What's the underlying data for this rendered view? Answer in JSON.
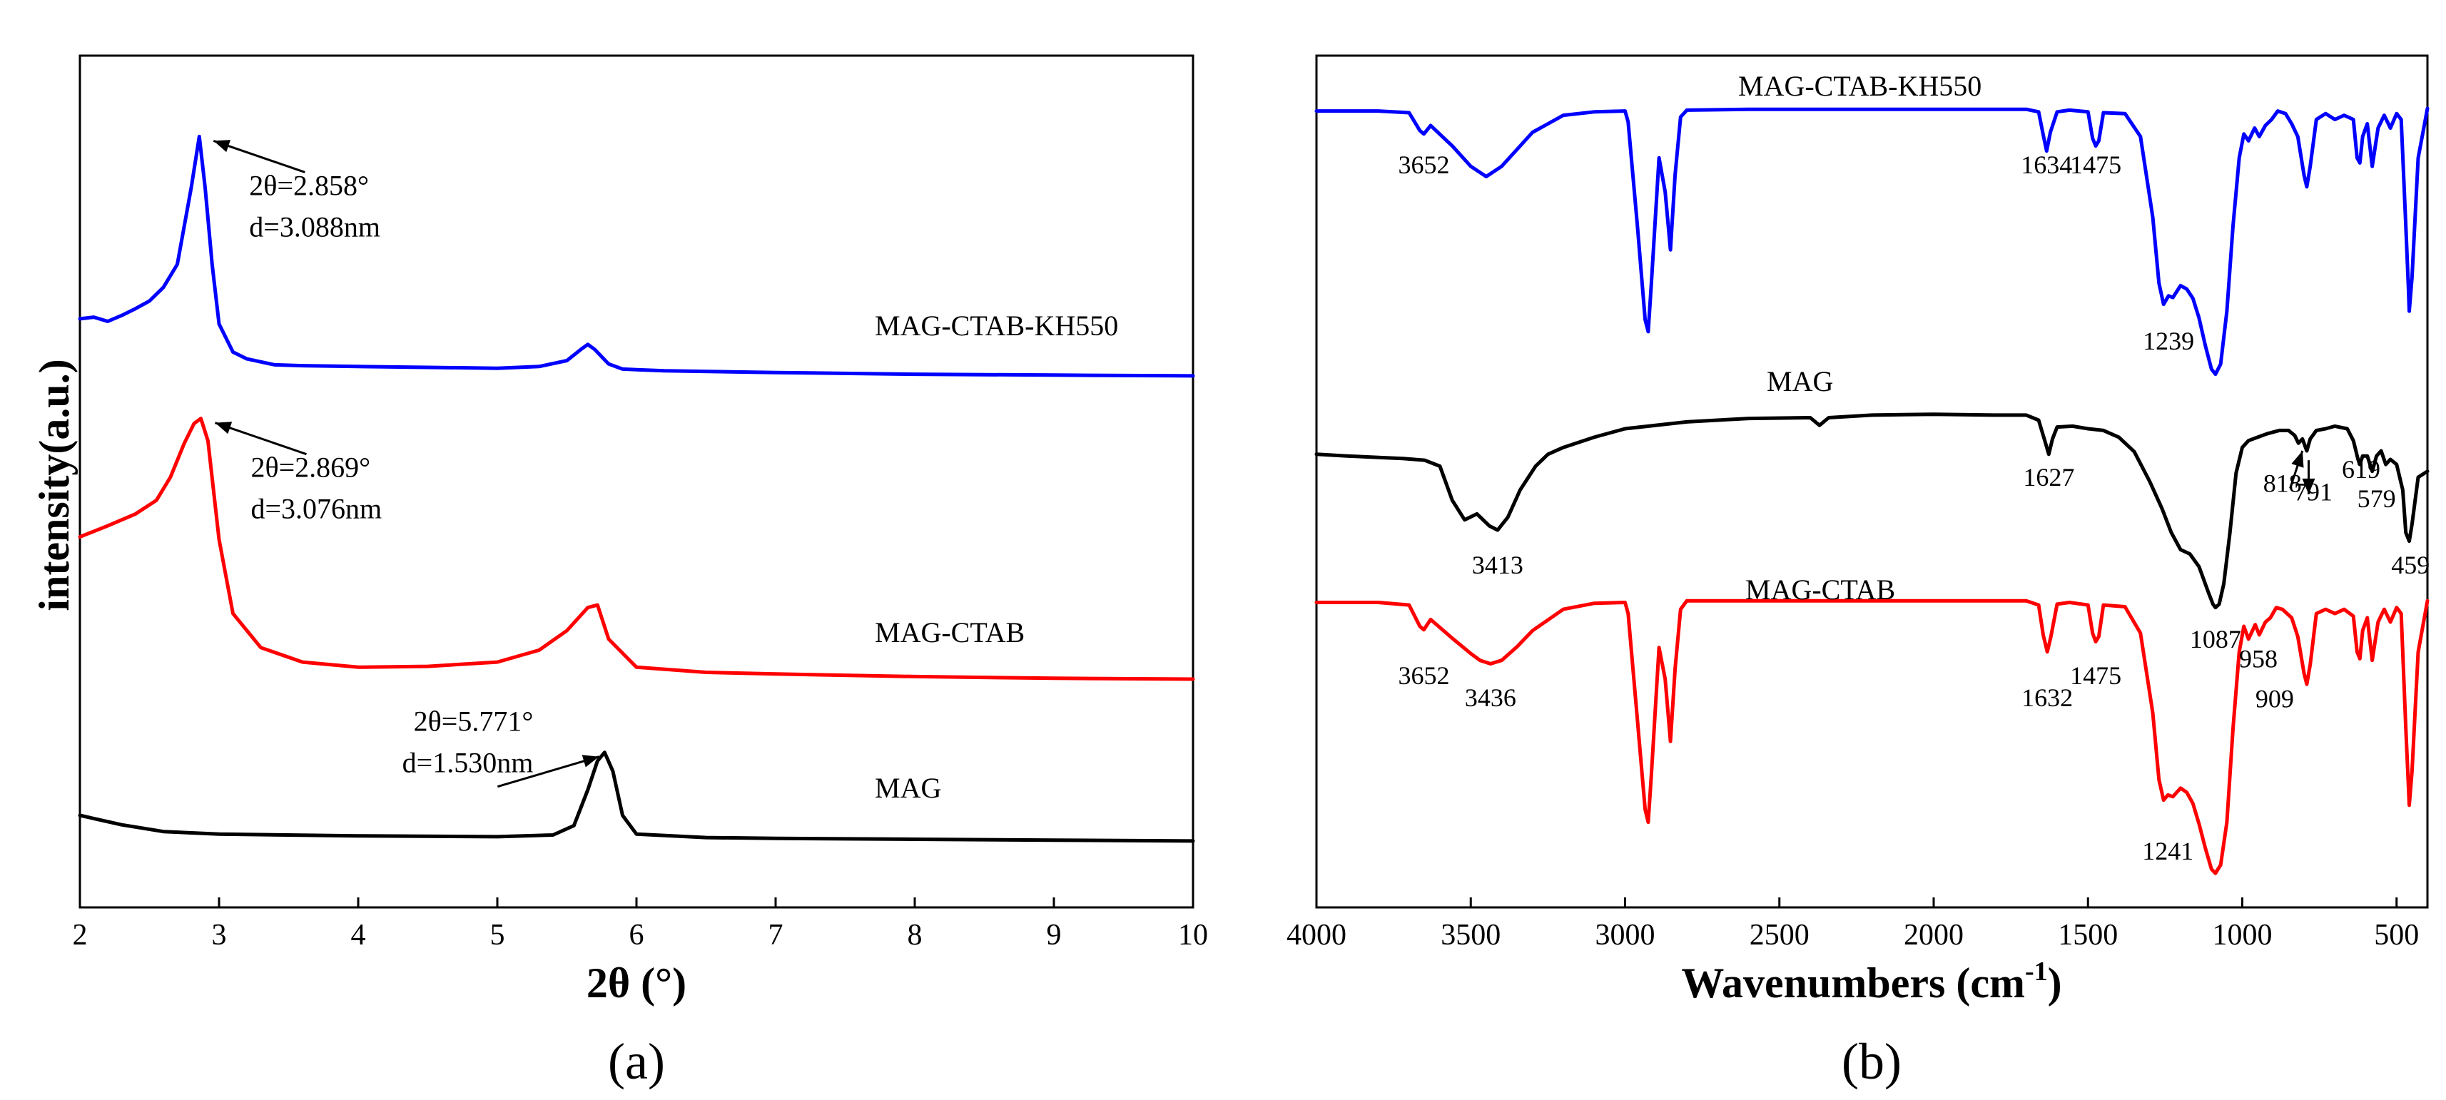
{
  "chart_data": [
    {
      "type": "line",
      "panel_label": "(a)",
      "xlabel": "2θ (°)",
      "ylabel": "intensity(a.u.)",
      "xlim": [
        2,
        10
      ],
      "ylim": [
        0,
        1
      ],
      "xticks": [
        2,
        3,
        4,
        5,
        6,
        7,
        8,
        9,
        10
      ],
      "yticks": false,
      "series": [
        {
          "name": "MAG-CTAB-KH550",
          "color": "#0000ff",
          "x": [
            2.0,
            2.1,
            2.2,
            2.3,
            2.4,
            2.5,
            2.6,
            2.7,
            2.8,
            2.858,
            2.9,
            2.95,
            3.0,
            3.1,
            3.2,
            3.4,
            3.6,
            4.0,
            4.5,
            5.0,
            5.3,
            5.5,
            5.6,
            5.65,
            5.7,
            5.8,
            5.9,
            6.2,
            7.0,
            8.0,
            9.0,
            10.0
          ],
          "y": [
            0.691,
            0.693,
            0.688,
            0.695,
            0.703,
            0.712,
            0.728,
            0.755,
            0.845,
            0.905,
            0.845,
            0.755,
            0.685,
            0.652,
            0.644,
            0.637,
            0.636,
            0.635,
            0.634,
            0.633,
            0.635,
            0.642,
            0.655,
            0.661,
            0.655,
            0.638,
            0.632,
            0.63,
            0.628,
            0.626,
            0.625,
            0.624
          ]
        },
        {
          "name": "MAG-CTAB",
          "color": "#ff0000",
          "x": [
            2.0,
            2.2,
            2.4,
            2.55,
            2.65,
            2.75,
            2.82,
            2.869,
            2.92,
            3.0,
            3.1,
            3.3,
            3.6,
            4.0,
            4.5,
            5.0,
            5.3,
            5.5,
            5.65,
            5.72,
            5.8,
            6.0,
            6.5,
            7.0,
            8.0,
            9.0,
            10.0
          ],
          "y": [
            0.435,
            0.448,
            0.462,
            0.478,
            0.505,
            0.545,
            0.568,
            0.574,
            0.548,
            0.432,
            0.345,
            0.305,
            0.288,
            0.282,
            0.283,
            0.288,
            0.302,
            0.325,
            0.352,
            0.355,
            0.315,
            0.282,
            0.276,
            0.274,
            0.271,
            0.269,
            0.268
          ]
        },
        {
          "name": "MAG",
          "color": "#000000",
          "x": [
            2.0,
            2.3,
            2.6,
            3.0,
            4.0,
            5.0,
            5.4,
            5.55,
            5.65,
            5.72,
            5.771,
            5.83,
            5.9,
            6.0,
            6.5,
            7.0,
            8.0,
            9.0,
            10.0
          ],
          "y": [
            0.108,
            0.097,
            0.089,
            0.086,
            0.084,
            0.083,
            0.085,
            0.096,
            0.138,
            0.172,
            0.182,
            0.16,
            0.108,
            0.086,
            0.082,
            0.081,
            0.08,
            0.079,
            0.078
          ]
        }
      ],
      "labels": [
        "MAG-CTAB-KH550",
        "MAG-CTAB",
        "MAG"
      ],
      "annotations": [
        {
          "line1": "2θ=2.858°",
          "line2": "d=3.088nm",
          "peak_x": 2.858,
          "series": "MAG-CTAB-KH550"
        },
        {
          "line1": "2θ=2.869°",
          "line2": "d=3.076nm",
          "peak_x": 2.869,
          "series": "MAG-CTAB"
        },
        {
          "line1": "2θ=5.771°",
          "line2": "d=1.530nm",
          "peak_x": 5.771,
          "series": "MAG"
        }
      ]
    },
    {
      "type": "line",
      "panel_label": "(b)",
      "xlabel_main": "Wavenumbers (cm",
      "xlabel_sup": "-1",
      "xlabel_end": ")",
      "xlim": [
        4000,
        400
      ],
      "ylim": [
        0,
        1
      ],
      "xticks": [
        4000,
        3500,
        3000,
        2500,
        2000,
        1500,
        1000,
        500
      ],
      "yticks": false,
      "series": [
        {
          "name": "MAG-CTAB-KH550",
          "color": "#0000ff",
          "x": [
            4000,
            3800,
            3700,
            3665,
            3652,
            3630,
            3560,
            3500,
            3450,
            3400,
            3300,
            3200,
            3100,
            3000,
            2990,
            2960,
            2935,
            2925,
            2915,
            2890,
            2870,
            2853,
            2838,
            2820,
            2800,
            2600,
            2000,
            1700,
            1660,
            1645,
            1634,
            1622,
            1600,
            1560,
            1500,
            1485,
            1475,
            1465,
            1450,
            1380,
            1330,
            1290,
            1270,
            1255,
            1239,
            1225,
            1200,
            1180,
            1160,
            1140,
            1120,
            1100,
            1087,
            1070,
            1050,
            1030,
            1010,
            995,
            980,
            960,
            945,
            925,
            905,
            885,
            860,
            840,
            820,
            800,
            791,
            780,
            760,
            730,
            700,
            670,
            640,
            628,
            619,
            610,
            595,
            579,
            560,
            540,
            520,
            500,
            485,
            470,
            462,
            459,
            450,
            430,
            400
          ],
          "y": [
            0.935,
            0.935,
            0.933,
            0.912,
            0.908,
            0.918,
            0.894,
            0.87,
            0.858,
            0.87,
            0.91,
            0.93,
            0.934,
            0.935,
            0.922,
            0.8,
            0.69,
            0.676,
            0.732,
            0.88,
            0.84,
            0.772,
            0.86,
            0.928,
            0.936,
            0.937,
            0.937,
            0.937,
            0.934,
            0.907,
            0.888,
            0.91,
            0.934,
            0.936,
            0.934,
            0.903,
            0.894,
            0.9,
            0.933,
            0.932,
            0.905,
            0.81,
            0.733,
            0.708,
            0.718,
            0.716,
            0.73,
            0.726,
            0.715,
            0.692,
            0.66,
            0.632,
            0.626,
            0.638,
            0.7,
            0.8,
            0.88,
            0.908,
            0.9,
            0.915,
            0.905,
            0.918,
            0.925,
            0.935,
            0.932,
            0.92,
            0.905,
            0.86,
            0.846,
            0.87,
            0.925,
            0.932,
            0.925,
            0.93,
            0.925,
            0.88,
            0.874,
            0.905,
            0.92,
            0.87,
            0.915,
            0.93,
            0.915,
            0.932,
            0.925,
            0.8,
            0.73,
            0.7,
            0.74,
            0.88,
            0.938
          ]
        },
        {
          "name": "MAG",
          "color": "#000000",
          "x": [
            4000,
            3900,
            3780,
            3720,
            3650,
            3600,
            3560,
            3520,
            3480,
            3440,
            3413,
            3380,
            3340,
            3290,
            3250,
            3200,
            3100,
            3000,
            2800,
            2600,
            2400,
            2370,
            2340,
            2200,
            2000,
            1800,
            1700,
            1660,
            1640,
            1627,
            1615,
            1600,
            1550,
            1500,
            1450,
            1400,
            1350,
            1300,
            1260,
            1230,
            1200,
            1170,
            1140,
            1110,
            1095,
            1087,
            1075,
            1060,
            1040,
            1020,
            1000,
            980,
            950,
            920,
            880,
            850,
            830,
            818,
            805,
            791,
            780,
            760,
            730,
            700,
            660,
            640,
            625,
            619,
            610,
            595,
            579,
            565,
            550,
            535,
            520,
            500,
            480,
            470,
            459,
            450,
            430,
            400
          ],
          "y": [
            0.532,
            0.53,
            0.528,
            0.527,
            0.525,
            0.518,
            0.478,
            0.455,
            0.462,
            0.448,
            0.443,
            0.458,
            0.49,
            0.518,
            0.532,
            0.54,
            0.552,
            0.562,
            0.57,
            0.574,
            0.575,
            0.566,
            0.575,
            0.578,
            0.579,
            0.578,
            0.578,
            0.572,
            0.548,
            0.532,
            0.55,
            0.564,
            0.565,
            0.562,
            0.56,
            0.552,
            0.535,
            0.5,
            0.468,
            0.44,
            0.42,
            0.415,
            0.4,
            0.37,
            0.356,
            0.352,
            0.356,
            0.38,
            0.44,
            0.51,
            0.54,
            0.548,
            0.552,
            0.556,
            0.56,
            0.56,
            0.554,
            0.545,
            0.55,
            0.536,
            0.55,
            0.56,
            0.562,
            0.565,
            0.562,
            0.548,
            0.526,
            0.52,
            0.53,
            0.53,
            0.512,
            0.53,
            0.536,
            0.52,
            0.526,
            0.52,
            0.49,
            0.44,
            0.43,
            0.45,
            0.505,
            0.512
          ]
        },
        {
          "name": "MAG-CTAB",
          "color": "#ff0000",
          "x": [
            4000,
            3800,
            3700,
            3665,
            3652,
            3630,
            3560,
            3500,
            3470,
            3436,
            3400,
            3350,
            3300,
            3200,
            3100,
            3000,
            2990,
            2960,
            2935,
            2925,
            2915,
            2890,
            2870,
            2853,
            2838,
            2820,
            2800,
            2600,
            2000,
            1700,
            1660,
            1645,
            1632,
            1620,
            1600,
            1560,
            1500,
            1485,
            1475,
            1465,
            1450,
            1380,
            1330,
            1290,
            1270,
            1255,
            1241,
            1225,
            1200,
            1180,
            1160,
            1140,
            1120,
            1100,
            1087,
            1070,
            1050,
            1030,
            1010,
            995,
            980,
            958,
            945,
            925,
            909,
            890,
            870,
            840,
            820,
            800,
            791,
            780,
            760,
            730,
            700,
            670,
            640,
            628,
            619,
            610,
            595,
            579,
            560,
            540,
            520,
            500,
            485,
            470,
            462,
            459,
            450,
            430,
            400
          ],
          "y": [
            0.358,
            0.358,
            0.355,
            0.33,
            0.326,
            0.338,
            0.316,
            0.298,
            0.29,
            0.286,
            0.29,
            0.306,
            0.325,
            0.35,
            0.357,
            0.358,
            0.345,
            0.22,
            0.115,
            0.1,
            0.155,
            0.305,
            0.268,
            0.195,
            0.28,
            0.35,
            0.36,
            0.36,
            0.36,
            0.36,
            0.355,
            0.32,
            0.3,
            0.318,
            0.356,
            0.358,
            0.355,
            0.322,
            0.312,
            0.318,
            0.355,
            0.353,
            0.322,
            0.228,
            0.15,
            0.126,
            0.132,
            0.13,
            0.14,
            0.135,
            0.122,
            0.098,
            0.07,
            0.045,
            0.04,
            0.05,
            0.1,
            0.21,
            0.3,
            0.33,
            0.315,
            0.332,
            0.32,
            0.335,
            0.34,
            0.352,
            0.35,
            0.34,
            0.318,
            0.275,
            0.262,
            0.285,
            0.345,
            0.35,
            0.345,
            0.35,
            0.342,
            0.3,
            0.292,
            0.325,
            0.34,
            0.29,
            0.335,
            0.35,
            0.335,
            0.352,
            0.345,
            0.21,
            0.145,
            0.12,
            0.16,
            0.3,
            0.36
          ]
        }
      ],
      "labels": [
        "MAG-CTAB-KH550",
        "MAG",
        "MAG-CTAB"
      ],
      "peak_labels": [
        {
          "text": "3652",
          "x": 3652,
          "y": 0.862,
          "series": "MAG-CTAB-KH550"
        },
        {
          "text": "1634",
          "x": 1634,
          "y": 0.862,
          "series": "MAG-CTAB-KH550"
        },
        {
          "text": "1475",
          "x": 1475,
          "y": 0.862,
          "series": "MAG-CTAB-KH550"
        },
        {
          "text": "1239",
          "x": 1239,
          "y": 0.655,
          "series": "MAG-CTAB-KH550"
        },
        {
          "text": "3413",
          "x": 3413,
          "y": 0.392,
          "series": "MAG"
        },
        {
          "text": "1627",
          "x": 1627,
          "y": 0.495,
          "series": "MAG"
        },
        {
          "text": "1087",
          "x": 1087,
          "y": 0.305,
          "series": "MAG"
        },
        {
          "text": "818",
          "x": 870,
          "y": 0.488,
          "series": "MAG"
        },
        {
          "text": "791",
          "x": 770,
          "y": 0.478,
          "series": "MAG"
        },
        {
          "text": "619",
          "x": 615,
          "y": 0.504,
          "series": "MAG"
        },
        {
          "text": "579",
          "x": 565,
          "y": 0.47,
          "series": "MAG"
        },
        {
          "text": "459",
          "x": 455,
          "y": 0.392,
          "series": "MAG"
        },
        {
          "text": "3652",
          "x": 3652,
          "y": 0.262,
          "series": "MAG-CTAB"
        },
        {
          "text": "3436",
          "x": 3436,
          "y": 0.236,
          "series": "MAG-CTAB"
        },
        {
          "text": "1632",
          "x": 1632,
          "y": 0.236,
          "series": "MAG-CTAB"
        },
        {
          "text": "1475",
          "x": 1475,
          "y": 0.262,
          "series": "MAG-CTAB"
        },
        {
          "text": "1241",
          "x": 1241,
          "y": 0.056,
          "series": "MAG-CTAB"
        },
        {
          "text": "958",
          "x": 948,
          "y": 0.282,
          "series": "MAG-CTAB"
        },
        {
          "text": "909",
          "x": 895,
          "y": 0.235,
          "series": "MAG-CTAB"
        }
      ],
      "arrows": [
        {
          "from": [
            845,
            0.492
          ],
          "to": [
            805,
            0.536
          ]
        },
        {
          "from": [
            785,
            0.525
          ],
          "to": [
            785,
            0.485
          ]
        }
      ]
    }
  ]
}
